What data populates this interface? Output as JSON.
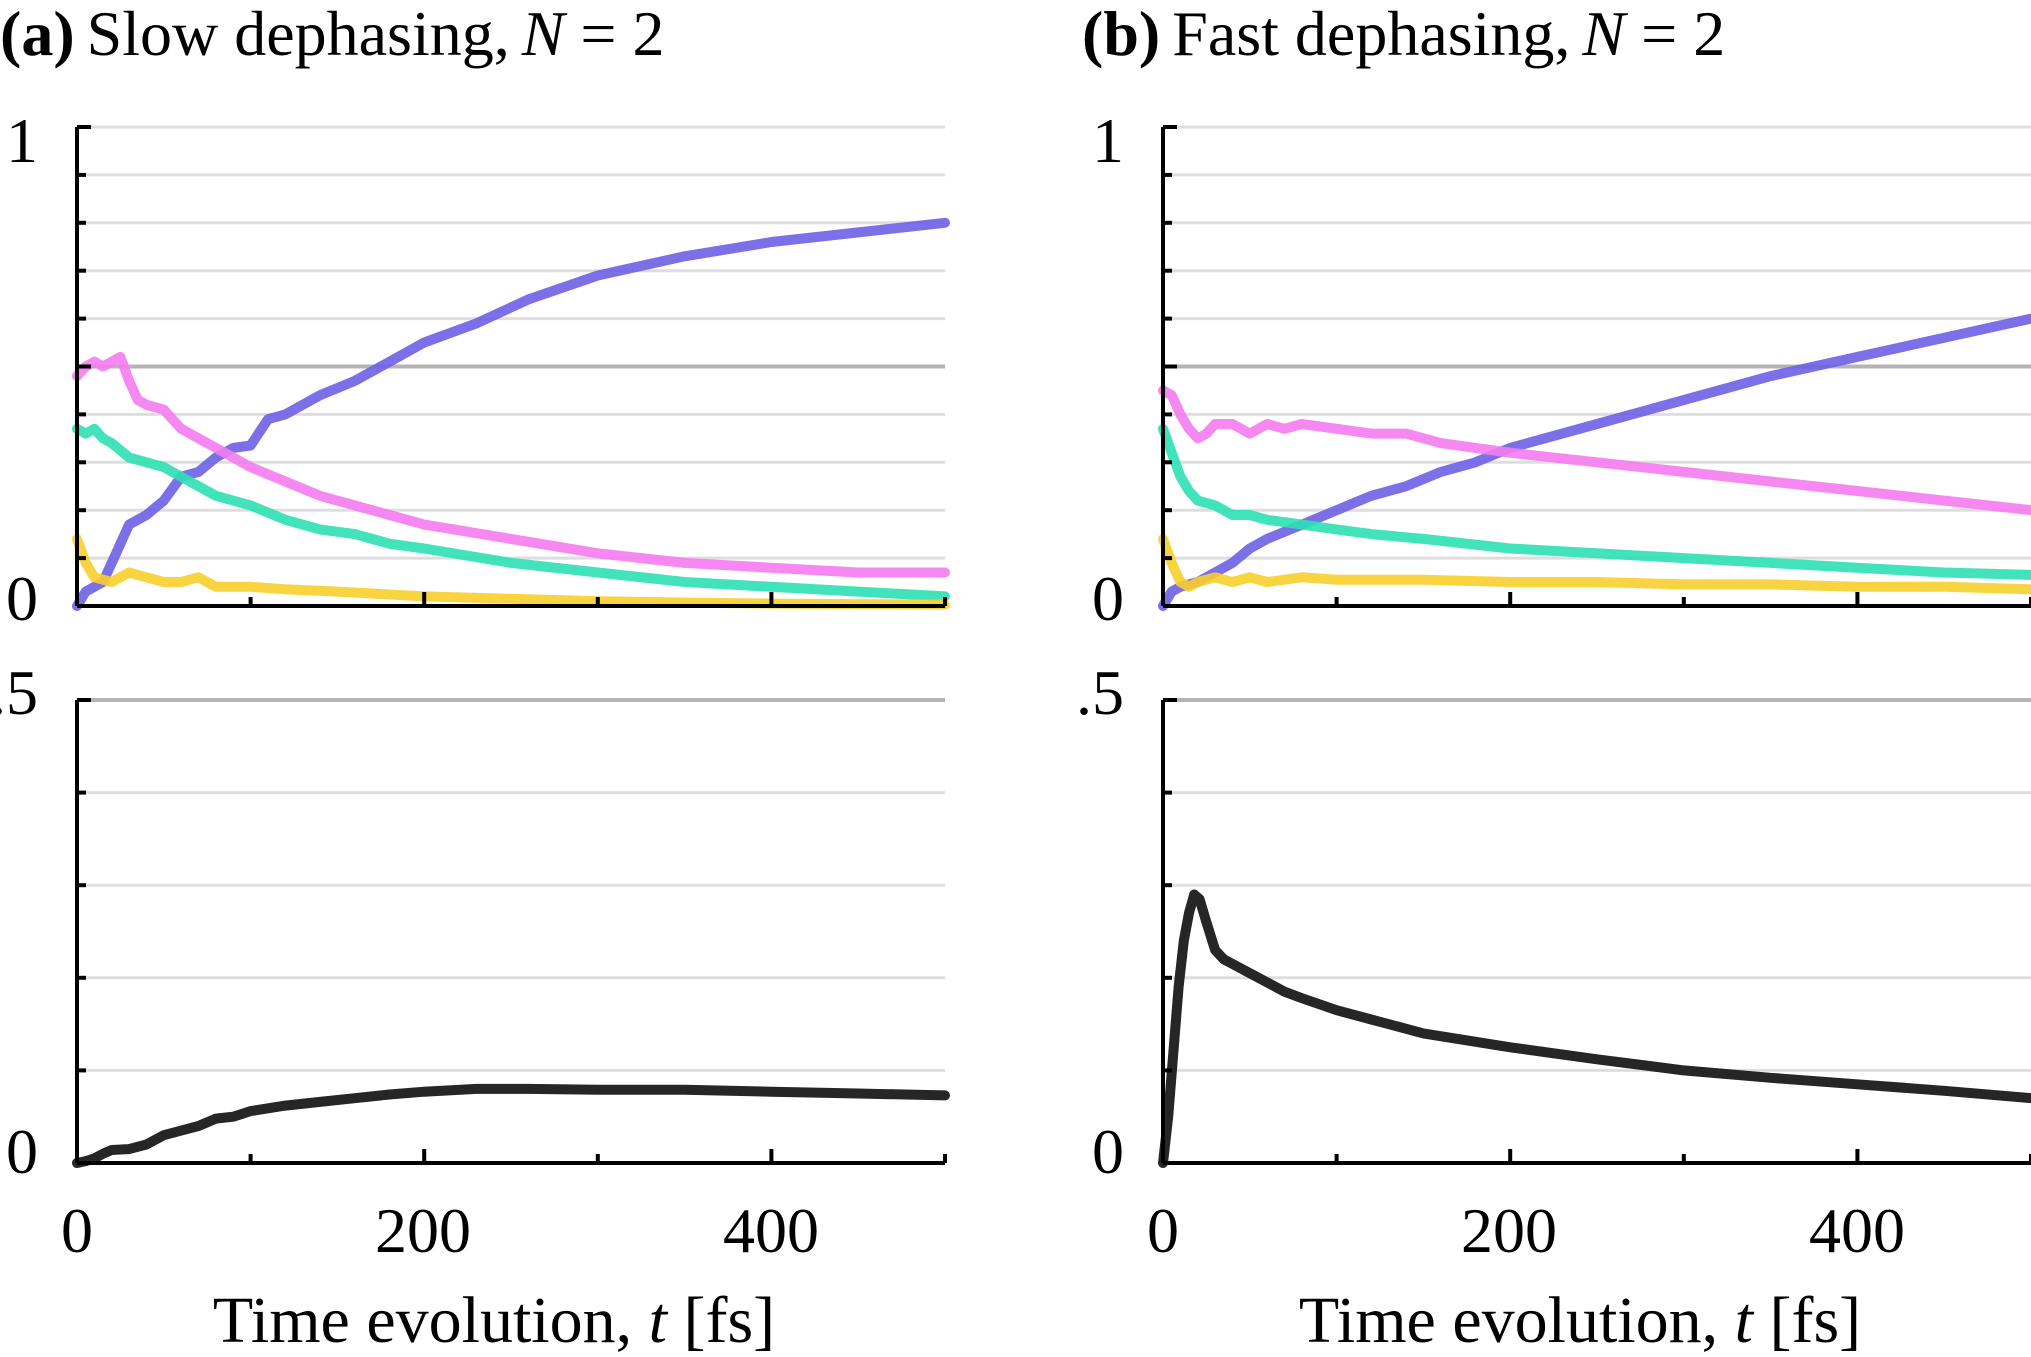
{
  "panels": [
    {
      "label": "(a)",
      "title_text": "Slow dephasing,",
      "title_var": "N",
      "title_eq": " = 2"
    },
    {
      "label": "(b)",
      "title_text": "Fast dephasing,",
      "title_var": "N",
      "title_eq": " = 2"
    }
  ],
  "x_axis": {
    "label_text": "Time evolution, ",
    "label_var": "t",
    "label_unit": " [fs]",
    "ticks": [
      "0",
      "200",
      "400"
    ]
  },
  "top_axis": {
    "ticks": [
      "0",
      "1"
    ]
  },
  "bottom_axis": {
    "ticks": [
      "0",
      ".5"
    ]
  },
  "chart_data": [
    {
      "type": "line",
      "title": "(a) Slow dephasing, N = 2 (top)",
      "xlim": [
        0,
        500
      ],
      "ylim": [
        0,
        1
      ],
      "gridlines": [
        0.1,
        0.2,
        0.3,
        0.4,
        0.5,
        0.6,
        0.7,
        0.8,
        0.9,
        1.0
      ],
      "series": [
        {
          "name": "blue",
          "color": "#6e60e6",
          "x": [
            0,
            5,
            10,
            15,
            20,
            30,
            40,
            50,
            60,
            70,
            80,
            90,
            100,
            110,
            120,
            140,
            160,
            180,
            200,
            230,
            260,
            300,
            350,
            400,
            450,
            500
          ],
          "y": [
            0,
            0.03,
            0.04,
            0.05,
            0.09,
            0.17,
            0.19,
            0.22,
            0.27,
            0.28,
            0.31,
            0.33,
            0.335,
            0.39,
            0.4,
            0.44,
            0.47,
            0.51,
            0.55,
            0.59,
            0.64,
            0.69,
            0.73,
            0.76,
            0.78,
            0.8
          ]
        },
        {
          "name": "magenta",
          "color": "#f47cf0",
          "x": [
            0,
            5,
            10,
            15,
            20,
            25,
            30,
            35,
            40,
            50,
            60,
            70,
            80,
            90,
            100,
            120,
            140,
            160,
            180,
            200,
            250,
            300,
            350,
            400,
            450,
            500
          ],
          "y": [
            0.48,
            0.5,
            0.51,
            0.5,
            0.51,
            0.52,
            0.47,
            0.43,
            0.42,
            0.41,
            0.37,
            0.35,
            0.33,
            0.31,
            0.29,
            0.26,
            0.23,
            0.21,
            0.19,
            0.17,
            0.14,
            0.11,
            0.09,
            0.08,
            0.07,
            0.07
          ]
        },
        {
          "name": "teal",
          "color": "#2ee0b4",
          "x": [
            0,
            5,
            10,
            15,
            20,
            30,
            40,
            50,
            60,
            70,
            80,
            100,
            120,
            140,
            160,
            180,
            200,
            250,
            300,
            350,
            400,
            450,
            500
          ],
          "y": [
            0.37,
            0.36,
            0.37,
            0.35,
            0.34,
            0.31,
            0.3,
            0.29,
            0.27,
            0.25,
            0.23,
            0.21,
            0.18,
            0.16,
            0.15,
            0.13,
            0.12,
            0.09,
            0.07,
            0.05,
            0.04,
            0.03,
            0.02
          ]
        },
        {
          "name": "yellow",
          "color": "#f8cf2c",
          "x": [
            0,
            5,
            10,
            20,
            30,
            40,
            50,
            60,
            70,
            80,
            100,
            120,
            150,
            200,
            250,
            300,
            350,
            400,
            450,
            500
          ],
          "y": [
            0.14,
            0.09,
            0.06,
            0.05,
            0.07,
            0.06,
            0.05,
            0.05,
            0.06,
            0.04,
            0.04,
            0.035,
            0.03,
            0.02,
            0.015,
            0.01,
            0.007,
            0.005,
            0.004,
            0.003
          ]
        }
      ]
    },
    {
      "type": "line",
      "title": "(a) Slow dephasing, N = 2 (bottom)",
      "xlim": [
        0,
        500
      ],
      "ylim": [
        0,
        0.5
      ],
      "gridlines": [
        0.1,
        0.2,
        0.3,
        0.4,
        0.5
      ],
      "series": [
        {
          "name": "black",
          "color": "#262626",
          "x": [
            0,
            5,
            10,
            15,
            20,
            30,
            40,
            50,
            60,
            70,
            80,
            90,
            100,
            120,
            140,
            160,
            180,
            200,
            230,
            260,
            300,
            350,
            400,
            450,
            500
          ],
          "y": [
            0,
            0.002,
            0.005,
            0.01,
            0.014,
            0.015,
            0.02,
            0.03,
            0.035,
            0.04,
            0.048,
            0.05,
            0.056,
            0.062,
            0.066,
            0.07,
            0.074,
            0.077,
            0.08,
            0.08,
            0.079,
            0.079,
            0.077,
            0.075,
            0.073
          ]
        }
      ]
    },
    {
      "type": "line",
      "title": "(b) Fast dephasing, N = 2 (top)",
      "xlim": [
        0,
        500
      ],
      "ylim": [
        0,
        1
      ],
      "gridlines": [
        0.1,
        0.2,
        0.3,
        0.4,
        0.5,
        0.6,
        0.7,
        0.8,
        0.9,
        1.0
      ],
      "series": [
        {
          "name": "blue",
          "color": "#6e60e6",
          "x": [
            0,
            5,
            10,
            20,
            30,
            40,
            50,
            60,
            80,
            100,
            120,
            140,
            160,
            180,
            200,
            250,
            300,
            350,
            400,
            450,
            500
          ],
          "y": [
            0,
            0.03,
            0.04,
            0.05,
            0.07,
            0.09,
            0.12,
            0.14,
            0.17,
            0.2,
            0.23,
            0.25,
            0.28,
            0.3,
            0.33,
            0.38,
            0.43,
            0.48,
            0.52,
            0.56,
            0.6
          ]
        },
        {
          "name": "magenta",
          "color": "#f47cf0",
          "x": [
            0,
            5,
            10,
            15,
            20,
            25,
            30,
            40,
            50,
            60,
            70,
            80,
            100,
            120,
            140,
            160,
            180,
            200,
            250,
            300,
            350,
            400,
            450,
            500
          ],
          "y": [
            0.45,
            0.44,
            0.4,
            0.37,
            0.35,
            0.36,
            0.38,
            0.38,
            0.36,
            0.38,
            0.37,
            0.38,
            0.37,
            0.36,
            0.36,
            0.34,
            0.33,
            0.32,
            0.3,
            0.28,
            0.26,
            0.24,
            0.22,
            0.2
          ]
        },
        {
          "name": "teal",
          "color": "#2ee0b4",
          "x": [
            0,
            5,
            10,
            15,
            20,
            30,
            40,
            50,
            60,
            80,
            100,
            120,
            150,
            200,
            250,
            300,
            350,
            400,
            450,
            500
          ],
          "y": [
            0.37,
            0.32,
            0.27,
            0.24,
            0.22,
            0.21,
            0.19,
            0.19,
            0.18,
            0.17,
            0.16,
            0.15,
            0.14,
            0.12,
            0.11,
            0.1,
            0.09,
            0.08,
            0.07,
            0.065
          ]
        },
        {
          "name": "yellow",
          "color": "#f8cf2c",
          "x": [
            0,
            5,
            10,
            15,
            20,
            30,
            40,
            50,
            60,
            80,
            100,
            150,
            200,
            250,
            300,
            350,
            400,
            450,
            500
          ],
          "y": [
            0.14,
            0.09,
            0.05,
            0.04,
            0.05,
            0.06,
            0.05,
            0.06,
            0.05,
            0.06,
            0.055,
            0.055,
            0.05,
            0.05,
            0.045,
            0.045,
            0.04,
            0.04,
            0.035
          ]
        }
      ]
    },
    {
      "type": "line",
      "title": "(b) Fast dephasing, N = 2 (bottom)",
      "xlim": [
        0,
        500
      ],
      "ylim": [
        0,
        0.5
      ],
      "gridlines": [
        0.1,
        0.2,
        0.3,
        0.4,
        0.5
      ],
      "series": [
        {
          "name": "black",
          "color": "#262626",
          "x": [
            0,
            3,
            6,
            9,
            12,
            15,
            18,
            21,
            25,
            30,
            35,
            40,
            50,
            60,
            70,
            80,
            100,
            120,
            150,
            200,
            250,
            300,
            350,
            400,
            450,
            500
          ],
          "y": [
            0,
            0.05,
            0.12,
            0.19,
            0.24,
            0.27,
            0.29,
            0.285,
            0.26,
            0.23,
            0.22,
            0.215,
            0.205,
            0.195,
            0.185,
            0.178,
            0.165,
            0.155,
            0.14,
            0.125,
            0.112,
            0.1,
            0.092,
            0.085,
            0.078,
            0.07
          ]
        }
      ]
    }
  ]
}
